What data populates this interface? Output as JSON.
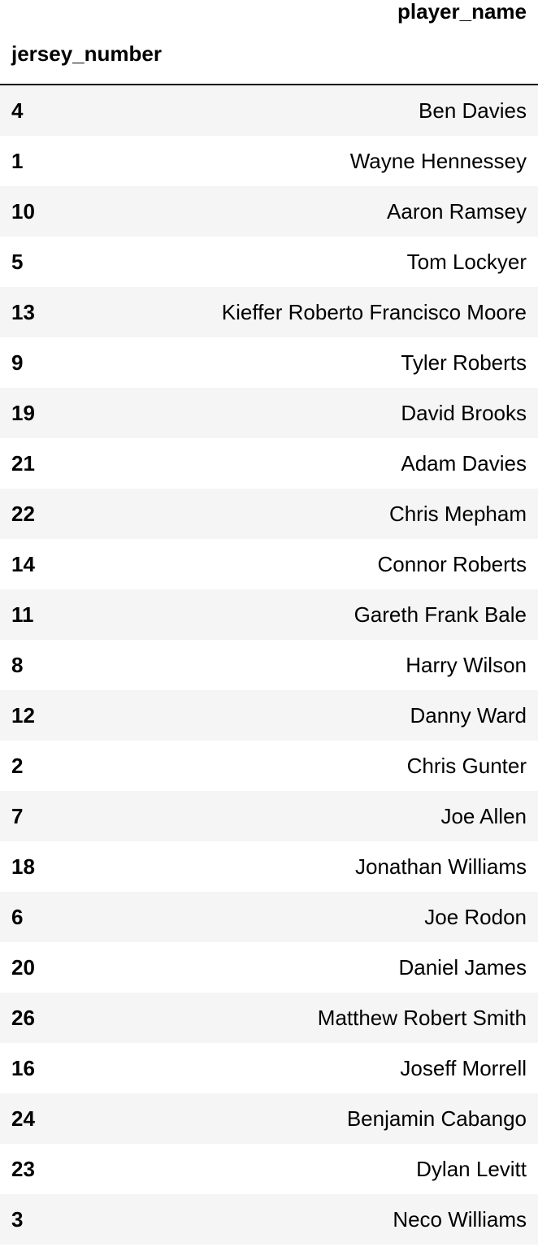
{
  "table": {
    "column_header": "player_name",
    "index_header": "jersey_number",
    "rows": [
      {
        "jersey_number": "4",
        "player_name": "Ben Davies"
      },
      {
        "jersey_number": "1",
        "player_name": "Wayne Hennessey"
      },
      {
        "jersey_number": "10",
        "player_name": "Aaron Ramsey"
      },
      {
        "jersey_number": "5",
        "player_name": "Tom Lockyer"
      },
      {
        "jersey_number": "13",
        "player_name": "Kieffer Roberto Francisco Moore"
      },
      {
        "jersey_number": "9",
        "player_name": "Tyler Roberts"
      },
      {
        "jersey_number": "19",
        "player_name": "David Brooks"
      },
      {
        "jersey_number": "21",
        "player_name": "Adam Davies"
      },
      {
        "jersey_number": "22",
        "player_name": "Chris Mepham"
      },
      {
        "jersey_number": "14",
        "player_name": "Connor Roberts"
      },
      {
        "jersey_number": "11",
        "player_name": "Gareth Frank Bale"
      },
      {
        "jersey_number": "8",
        "player_name": "Harry Wilson"
      },
      {
        "jersey_number": "12",
        "player_name": "Danny Ward"
      },
      {
        "jersey_number": "2",
        "player_name": "Chris Gunter"
      },
      {
        "jersey_number": "7",
        "player_name": "Joe Allen"
      },
      {
        "jersey_number": "18",
        "player_name": "Jonathan Williams"
      },
      {
        "jersey_number": "6",
        "player_name": "Joe Rodon"
      },
      {
        "jersey_number": "20",
        "player_name": "Daniel James"
      },
      {
        "jersey_number": "26",
        "player_name": "Matthew Robert Smith"
      },
      {
        "jersey_number": "16",
        "player_name": "Joseff Morrell"
      },
      {
        "jersey_number": "24",
        "player_name": "Benjamin Cabango"
      },
      {
        "jersey_number": "23",
        "player_name": "Dylan Levitt"
      },
      {
        "jersey_number": "3",
        "player_name": "Neco Williams"
      }
    ]
  }
}
